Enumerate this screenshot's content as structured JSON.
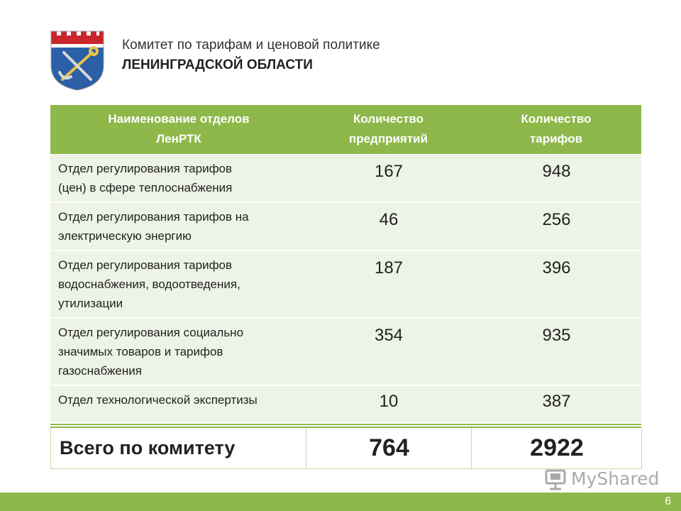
{
  "header": {
    "org_line1": "Комитет по тарифам и ценовой политике",
    "org_line2": "ЛЕНИНГРАДСКОЙ ОБЛАСТИ"
  },
  "table": {
    "headers": {
      "col1_line1": "Наименование отделов",
      "col1_line2": "ЛенРТК",
      "col2_line1": "Количество",
      "col2_line2": "предприятий",
      "col3_line1": "Количество",
      "col3_line2": "тарифов"
    },
    "rows": [
      {
        "lines": [
          "Отдел регулирования тарифов",
          "(цен) в сфере теплоснабжения"
        ],
        "enterprises": "167",
        "tariffs": "948"
      },
      {
        "lines": [
          "Отдел регулирования тарифов на",
          "электрическую энергию"
        ],
        "enterprises": "46",
        "tariffs": "256"
      },
      {
        "lines": [
          "Отдел регулирования тарифов",
          "водоснабжения, водоотведения,",
          "утилизации"
        ],
        "enterprises": "187",
        "tariffs": "396"
      },
      {
        "lines": [
          "Отдел регулирования социально",
          "значимых товаров и тарифов",
          "газоснабжения"
        ],
        "enterprises": "354",
        "tariffs": "935"
      },
      {
        "lines": [
          "Отдел технологической экспертизы"
        ],
        "enterprises": "10",
        "tariffs": "387"
      }
    ],
    "total": {
      "label": "Всего по комитету",
      "enterprises": "764",
      "tariffs": "2922"
    }
  },
  "watermark": {
    "text": "MyShared"
  },
  "footer": {
    "page_number": "6"
  },
  "colors": {
    "accent_green": "#8eb84a",
    "row_bg": "#edf3e5"
  },
  "icons": {
    "emblem": "leningrad-oblast-coat-of-arms-icon",
    "watermark": "myshared-logo-icon"
  }
}
